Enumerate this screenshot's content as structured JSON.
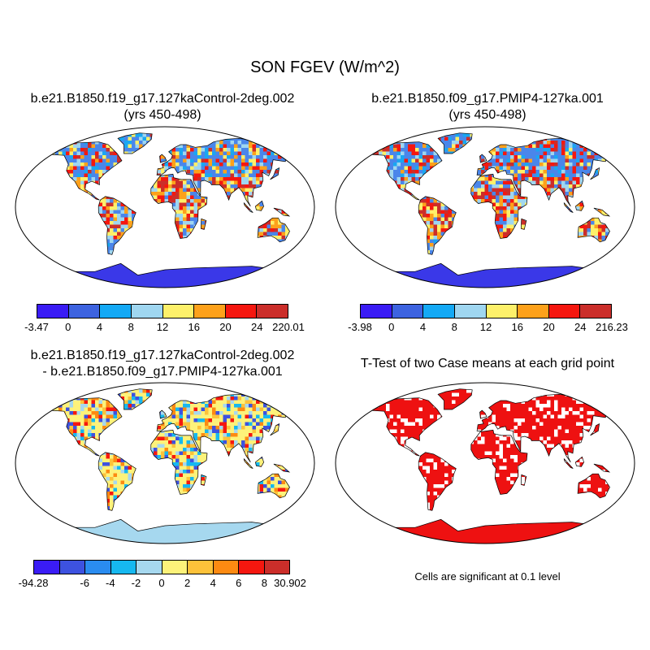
{
  "main_title": "SON FGEV (W/m^2)",
  "panels": {
    "top_left": {
      "title_line1": "b.e21.B1850.f19_g17.127kaControl-2deg.002",
      "title_line2": "(yrs 450-498)"
    },
    "top_right": {
      "title_line1": "b.e21.B1850.f09_g17.PMIP4-127ka.001",
      "title_line2": "(yrs 450-498)"
    },
    "bottom_left": {
      "title_line1": "b.e21.B1850.f19_g17.127kaControl-2deg.002",
      "title_line2": "- b.e21.B1850.f09_g17.PMIP4-127ka.001"
    },
    "bottom_right": {
      "title_line1": "T-Test of two Case means at each grid point",
      "note": "Cells are significant at 0.1 level"
    }
  },
  "colorbars": {
    "top_left": {
      "colors": [
        "#3a1cf5",
        "#3d63e0",
        "#14a9f5",
        "#9fd6f0",
        "#fdf06a",
        "#fda11b",
        "#f5170f",
        "#cb2e2a"
      ],
      "labels": [
        "-3.47",
        "0",
        "4",
        "8",
        "12",
        "16",
        "20",
        "24",
        "220.01"
      ]
    },
    "top_right": {
      "colors": [
        "#3a1cf5",
        "#3d63e0",
        "#14a9f5",
        "#9fd6f0",
        "#fdf06a",
        "#fda11b",
        "#f5170f",
        "#cb2e2a"
      ],
      "labels": [
        "-3.98",
        "0",
        "4",
        "8",
        "12",
        "16",
        "20",
        "24",
        "216.23"
      ]
    },
    "bottom_left": {
      "colors": [
        "#3a1cf5",
        "#3d52e0",
        "#2a8cf0",
        "#16b8f0",
        "#a6d8ef",
        "#fdf27a",
        "#fdc23a",
        "#fd8a12",
        "#f5170f",
        "#cb2e2a"
      ],
      "labels": [
        "-94.28",
        "",
        "-6",
        "-4",
        "-2",
        "0",
        "2",
        "4",
        "6",
        "8",
        "30.902"
      ]
    }
  },
  "map_styles": {
    "top_left": {
      "base": "#4a86ea",
      "accents": [
        "#19a7f2",
        "#fdf06a",
        "#fda11b",
        "#f5170f",
        "#cb2e2a",
        "#9fd6f0"
      ]
    },
    "top_right": {
      "base": "#4a86ea",
      "accents": [
        "#19a7f2",
        "#fdf06a",
        "#fda11b",
        "#f5170f",
        "#cb2e2a",
        "#9fd6f0"
      ]
    },
    "bottom_left": {
      "base": "#fdf27a",
      "accents": [
        "#a6d8ef",
        "#fdc23a",
        "#16b8f0",
        "#fd8a12",
        "#3d52e0",
        "#f5170f"
      ]
    },
    "bottom_right": {
      "base": "#ee1111",
      "accents": [
        "#ffffff"
      ]
    },
    "antarctica": {
      "top_left": "#3a38e8",
      "top_right": "#3a38e8",
      "bottom_left": "#a6d8ef",
      "bottom_right": "#ee1111"
    }
  }
}
